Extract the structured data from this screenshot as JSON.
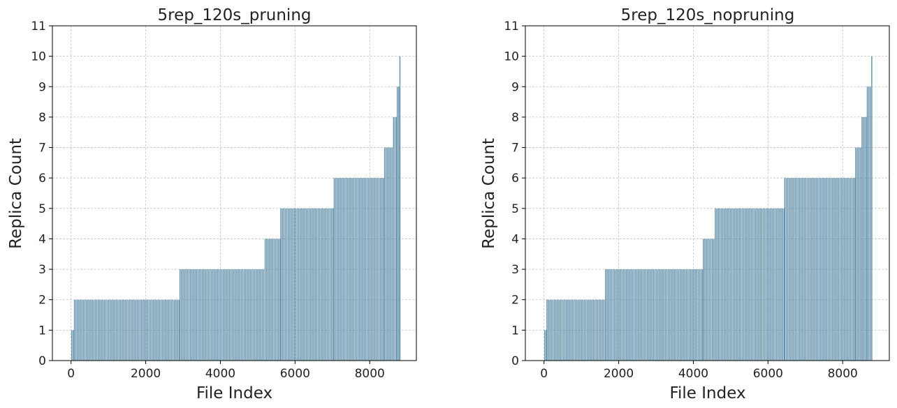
{
  "chart_data": [
    {
      "type": "bar",
      "title": "5rep_120s_pruning",
      "xlabel": "File Index",
      "ylabel": "Replica Count",
      "xlim": [
        -500,
        9250
      ],
      "ylim": [
        0,
        11
      ],
      "xticks": [
        "0",
        "2000",
        "4000",
        "6000",
        "8000"
      ],
      "yticks": [
        "0",
        "1",
        "2",
        "3",
        "4",
        "5",
        "6",
        "7",
        "8",
        "9",
        "10",
        "11"
      ],
      "grid": true,
      "bar_color": "#6391ab",
      "bar_stride": 40,
      "segments": [
        {
          "x_start": 0,
          "x_end": 70,
          "value": 1
        },
        {
          "x_start": 70,
          "x_end": 2900,
          "value": 2
        },
        {
          "x_start": 2900,
          "x_end": 5180,
          "value": 3
        },
        {
          "x_start": 5180,
          "x_end": 5600,
          "value": 4
        },
        {
          "x_start": 5600,
          "x_end": 7030,
          "value": 5
        },
        {
          "x_start": 7030,
          "x_end": 8380,
          "value": 6
        },
        {
          "x_start": 8380,
          "x_end": 8620,
          "value": 7
        },
        {
          "x_start": 8620,
          "x_end": 8720,
          "value": 8
        },
        {
          "x_start": 8720,
          "x_end": 8790,
          "value": 9
        },
        {
          "x_start": 8790,
          "x_end": 8815,
          "value": 10
        }
      ]
    },
    {
      "type": "bar",
      "title": "5rep_120s_nopruning",
      "xlabel": "File Index",
      "ylabel": "Replica Count",
      "xlim": [
        -500,
        9250
      ],
      "ylim": [
        0,
        11
      ],
      "xticks": [
        "0",
        "2000",
        "4000",
        "6000",
        "8000"
      ],
      "yticks": [
        "0",
        "1",
        "2",
        "3",
        "4",
        "5",
        "6",
        "7",
        "8",
        "9",
        "10",
        "11"
      ],
      "grid": true,
      "bar_color": "#6391ab",
      "bar_stride": 40,
      "segments": [
        {
          "x_start": 0,
          "x_end": 60,
          "value": 1
        },
        {
          "x_start": 60,
          "x_end": 1630,
          "value": 2
        },
        {
          "x_start": 1630,
          "x_end": 4250,
          "value": 3
        },
        {
          "x_start": 4250,
          "x_end": 4570,
          "value": 4
        },
        {
          "x_start": 4570,
          "x_end": 6430,
          "value": 5
        },
        {
          "x_start": 6430,
          "x_end": 8330,
          "value": 6
        },
        {
          "x_start": 8330,
          "x_end": 8500,
          "value": 7
        },
        {
          "x_start": 8500,
          "x_end": 8640,
          "value": 8
        },
        {
          "x_start": 8640,
          "x_end": 8760,
          "value": 9
        },
        {
          "x_start": 8760,
          "x_end": 8790,
          "value": 10
        }
      ]
    }
  ]
}
